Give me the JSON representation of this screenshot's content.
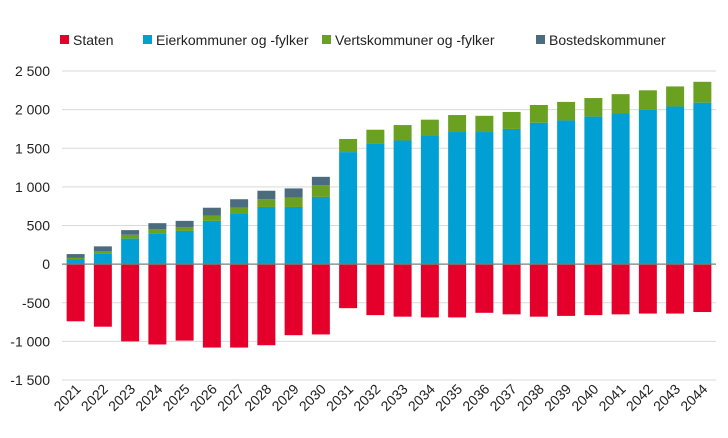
{
  "chart_data": {
    "type": "bar",
    "stacked": true,
    "title": "",
    "xlabel": "",
    "ylabel": "",
    "ylim": [
      -1500,
      2500
    ],
    "yticks": [
      -1500,
      -1000,
      -500,
      0,
      500,
      1000,
      1500,
      2000,
      2500
    ],
    "ytick_labels": [
      "-1 500",
      "-1 000",
      "-500",
      "0",
      "500",
      "1 000",
      "1 500",
      "2 000",
      "2 500"
    ],
    "grid": true,
    "legend_position": "top",
    "categories": [
      "2021",
      "2022",
      "2023",
      "2024",
      "2025",
      "2026",
      "2027",
      "2028",
      "2029",
      "2030",
      "2031",
      "2032",
      "2033",
      "2034",
      "2035",
      "2036",
      "2037",
      "2038",
      "2039",
      "2040",
      "2041",
      "2042",
      "2043",
      "2044"
    ],
    "series": [
      {
        "name": "Staten",
        "color": "#e4002b",
        "values": [
          -740,
          -810,
          -1000,
          -1040,
          -990,
          -1080,
          -1080,
          -1050,
          -920,
          -910,
          -570,
          -660,
          -680,
          -690,
          -690,
          -630,
          -650,
          -680,
          -670,
          -660,
          -650,
          -640,
          -640,
          -620
        ]
      },
      {
        "name": "Eierkommuner og -fylker",
        "color": "#009fd4",
        "values": [
          60,
          140,
          330,
          400,
          430,
          560,
          660,
          740,
          740,
          870,
          1450,
          1560,
          1600,
          1670,
          1710,
          1710,
          1750,
          1830,
          1860,
          1910,
          1950,
          2000,
          2040,
          2090
        ]
      },
      {
        "name": "Vertskommuner og -fylker",
        "color": "#6aa121",
        "values": [
          20,
          30,
          50,
          50,
          50,
          70,
          70,
          100,
          120,
          150,
          170,
          180,
          200,
          200,
          220,
          210,
          220,
          230,
          240,
          240,
          250,
          250,
          260,
          270
        ]
      },
      {
        "name": "Bostedskommuner",
        "color": "#4b6b7e",
        "values": [
          50,
          60,
          60,
          80,
          80,
          100,
          110,
          110,
          120,
          110,
          0,
          0,
          0,
          0,
          0,
          0,
          0,
          0,
          0,
          0,
          0,
          0,
          0,
          0
        ]
      }
    ]
  }
}
